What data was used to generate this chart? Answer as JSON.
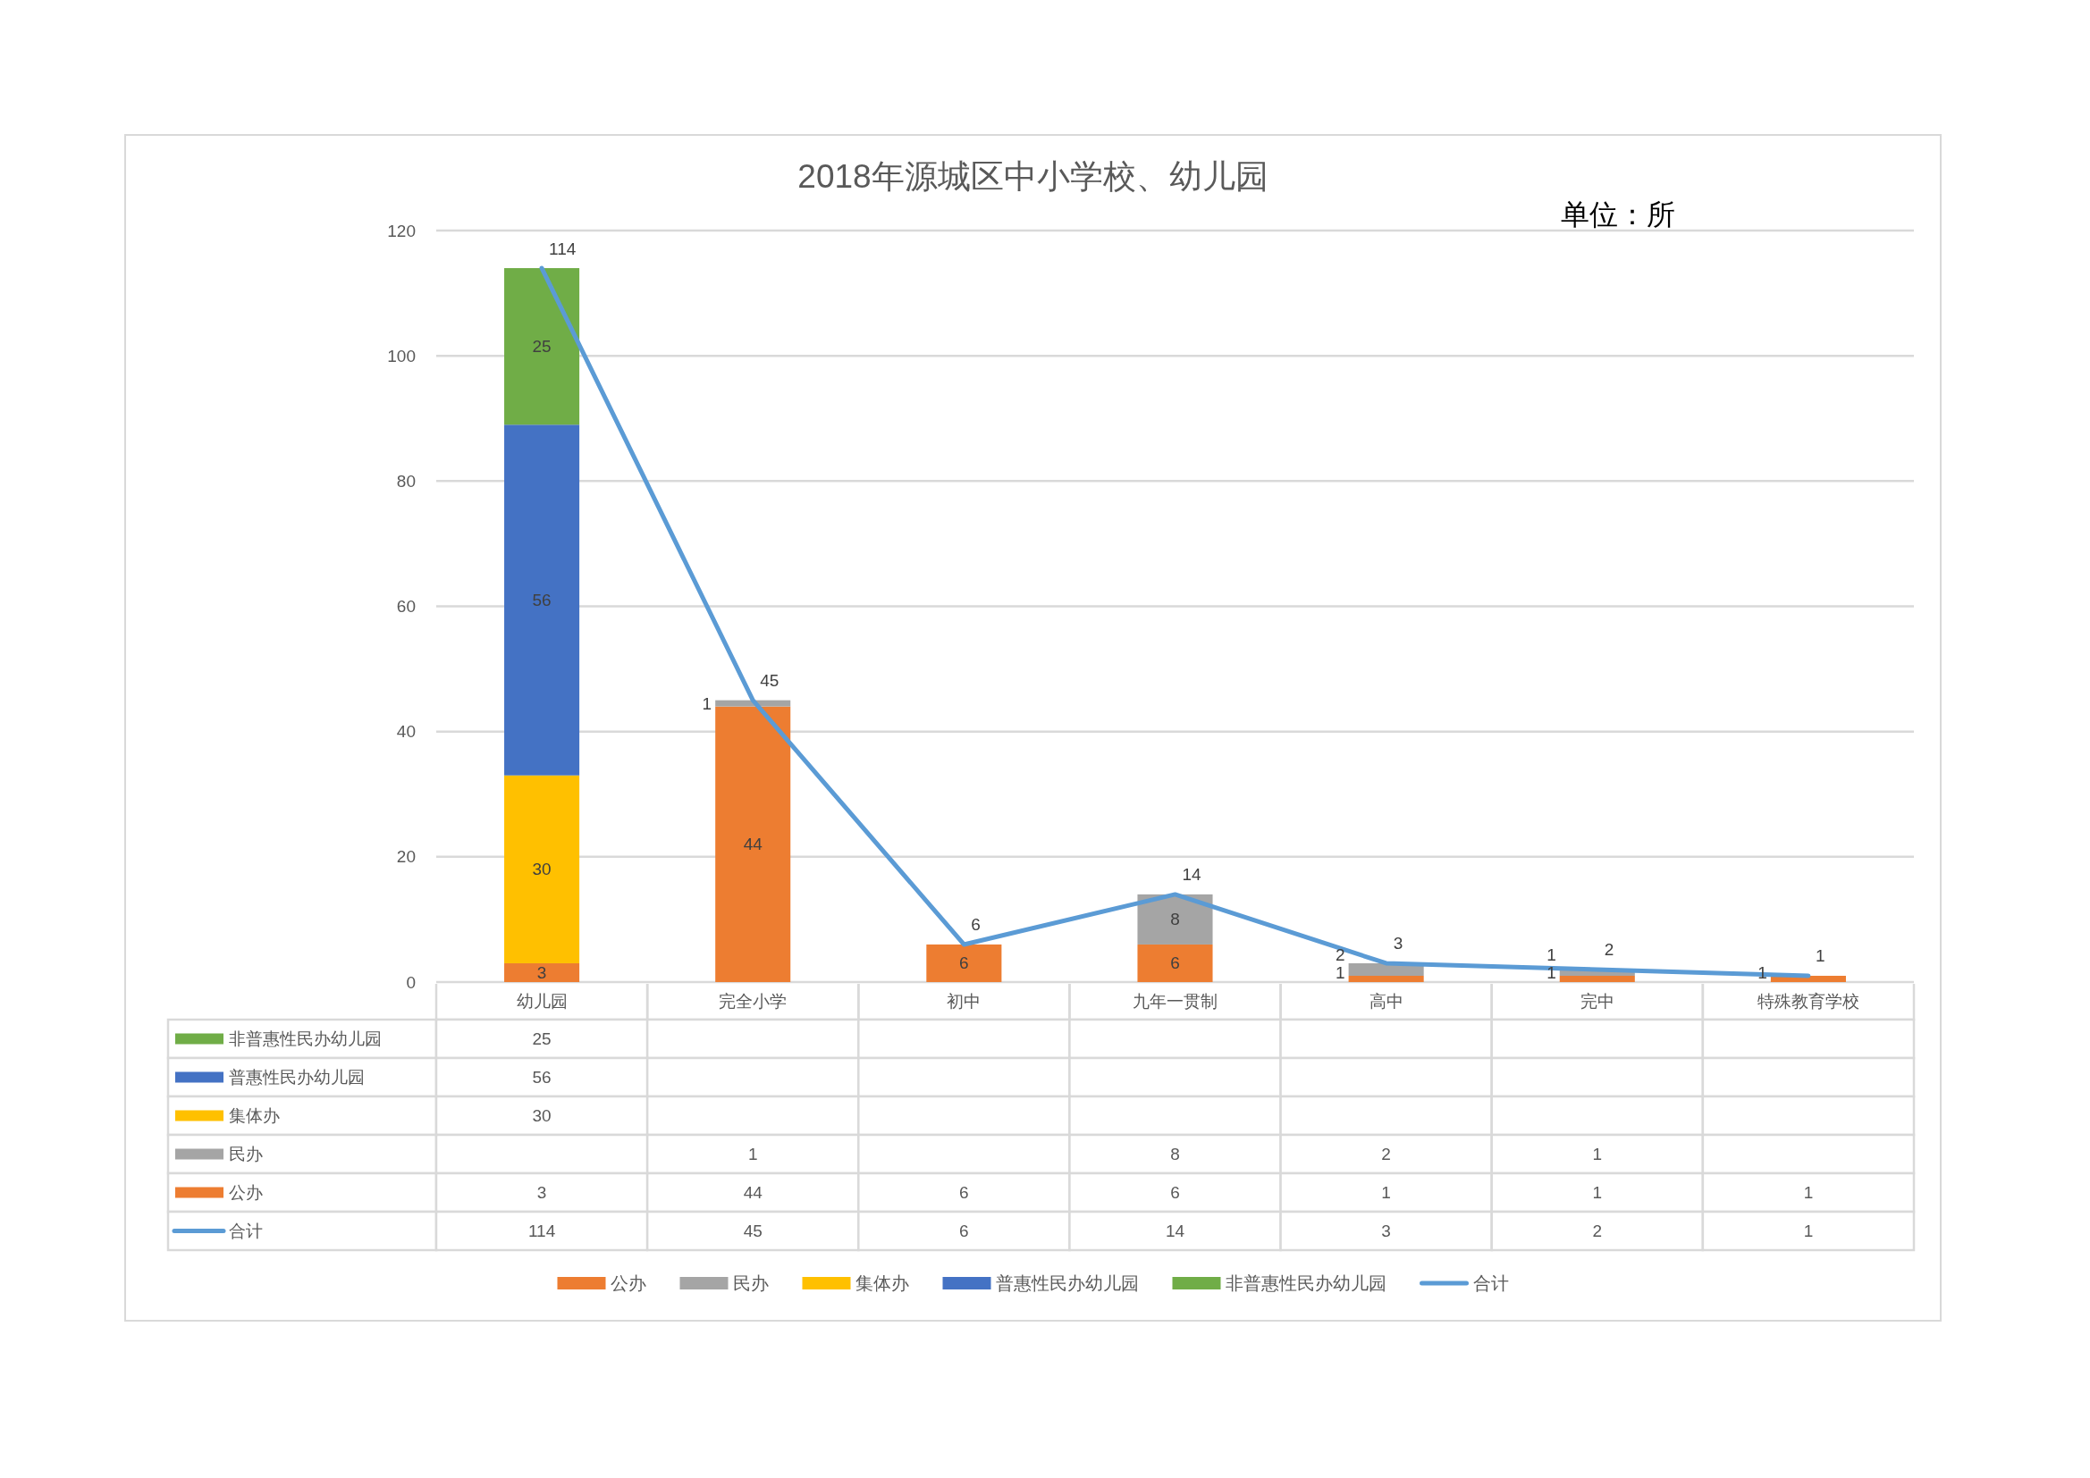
{
  "chart_data": [
    {
      "type": "bar",
      "title": "2018年源城区中小学校、幼儿园",
      "annotations": [
        "单位：所"
      ],
      "categories": [
        "幼儿园",
        "完全小学",
        "初中",
        "九年一贯制",
        "高中",
        "完中",
        "特殊教育学校"
      ],
      "stacked": true,
      "series": [
        {
          "name": "公办",
          "color": "#ed7d31",
          "values": [
            3,
            44,
            6,
            6,
            1,
            1,
            1
          ]
        },
        {
          "name": "民办",
          "color": "#a5a5a5",
          "values": [
            null,
            1,
            null,
            8,
            2,
            1,
            null
          ]
        },
        {
          "name": "集体办",
          "color": "#ffc000",
          "values": [
            30,
            null,
            null,
            null,
            null,
            null,
            null
          ]
        },
        {
          "name": "普惠性民办幼儿园",
          "color": "#4472c4",
          "values": [
            56,
            null,
            null,
            null,
            null,
            null,
            null
          ]
        },
        {
          "name": "非普惠性民办幼儿园",
          "color": "#70ad47",
          "values": [
            25,
            null,
            null,
            null,
            null,
            null,
            null
          ]
        },
        {
          "name": "合计",
          "type": "line",
          "color": "#5b9bd5",
          "values": [
            114,
            45,
            6,
            14,
            3,
            2,
            1
          ]
        }
      ],
      "ylim": [
        0,
        120
      ],
      "yticks": [
        0,
        20,
        40,
        60,
        80,
        100,
        120
      ],
      "grid": "y",
      "legend": "bottom",
      "data_labels": true
    },
    {
      "type": "heatmap",
      "categories": [
        null,
        null,
        null,
        null,
        null,
        null,
        null
      ],
      "y_categories": [
        "非普惠性民办幼儿园",
        "普惠性民办幼儿园",
        "集体办",
        "民办",
        "公办",
        "合计"
      ],
      "cells": [
        [
          25,
          null,
          null,
          null,
          null,
          null,
          null
        ],
        [
          56,
          null,
          null,
          null,
          null,
          null,
          null
        ],
        [
          30,
          null,
          null,
          null,
          null,
          null,
          null
        ],
        [
          null,
          1,
          null,
          8,
          2,
          1,
          null
        ],
        [
          3,
          44,
          6,
          6,
          1,
          1,
          1
        ],
        [
          114,
          45,
          6,
          14,
          3,
          2,
          1
        ]
      ],
      "data_labels": true
    }
  ]
}
